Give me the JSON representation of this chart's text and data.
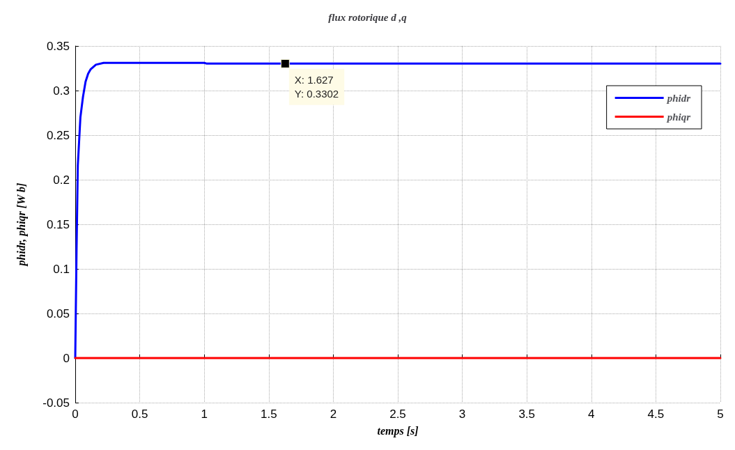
{
  "chart_data": {
    "type": "line",
    "title": "flux rotorique d ,q",
    "xlabel": "temps [s]",
    "ylabel": "phidr, phiqr [W b]",
    "xlim": [
      0,
      5
    ],
    "xticks": [
      0,
      0.5,
      1,
      1.5,
      2,
      2.5,
      3,
      3.5,
      4,
      4.5,
      5
    ],
    "ylim": [
      -0.05,
      0.35
    ],
    "yticks": [
      -0.05,
      0,
      0.05,
      0.1,
      0.15,
      0.2,
      0.25,
      0.3,
      0.35
    ],
    "grid": true,
    "legend": "top right",
    "marker": "none",
    "line_style": "solid",
    "series": [
      {
        "name": "phidr",
        "color": "#0000ff",
        "x": [
          0,
          0.01,
          0.02,
          0.04,
          0.06,
          0.08,
          0.1,
          0.12,
          0.16,
          0.22,
          0.5,
          1,
          1.02,
          1.627,
          5
        ],
        "values": [
          0,
          0.12,
          0.216,
          0.27,
          0.293,
          0.31,
          0.319,
          0.324,
          0.329,
          0.331,
          0.331,
          0.331,
          0.3302,
          0.3302,
          0.3302
        ]
      },
      {
        "name": "phiqr",
        "color": "#ff0000",
        "x": [
          0,
          5
        ],
        "values": [
          0,
          0
        ]
      }
    ],
    "annotations": [
      {
        "text": "X: 1.627\nY: 0.3302",
        "x": 1.627,
        "y": 0.3302
      }
    ]
  }
}
